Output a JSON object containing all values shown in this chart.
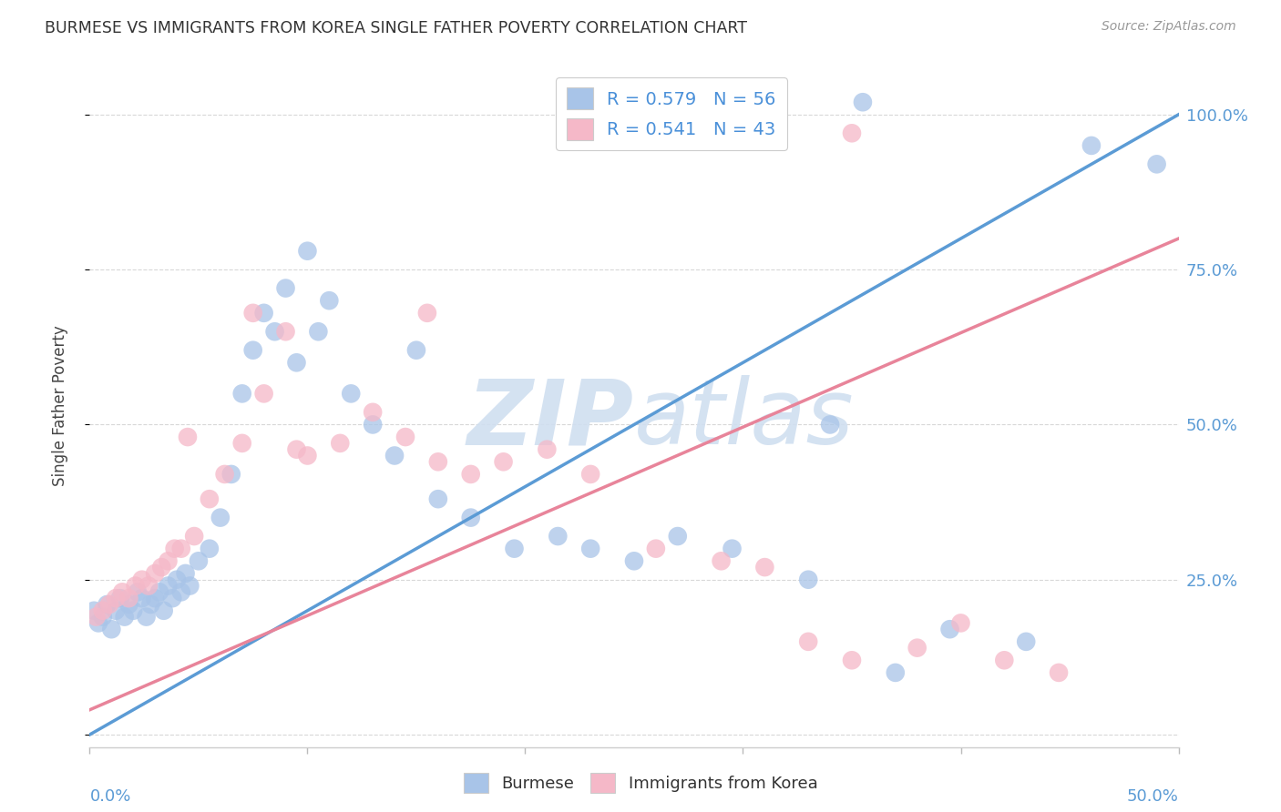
{
  "title": "BURMESE VS IMMIGRANTS FROM KOREA SINGLE FATHER POVERTY CORRELATION CHART",
  "source": "Source: ZipAtlas.com",
  "ylabel": "Single Father Poverty",
  "xlim": [
    0.0,
    0.5
  ],
  "ylim": [
    -0.02,
    1.08
  ],
  "blue_color": "#a8c4e8",
  "pink_color": "#f5b8c8",
  "blue_line_color": "#5b9bd5",
  "pink_line_color": "#e8849a",
  "dash_color": "#c8c8c8",
  "watermark_color": "#d0dff0",
  "blue_slope": 2.0,
  "blue_intercept": 0.0,
  "pink_slope": 1.52,
  "pink_intercept": 0.04,
  "burmese_x": [
    0.002,
    0.004,
    0.006,
    0.008,
    0.01,
    0.012,
    0.014,
    0.016,
    0.018,
    0.02,
    0.022,
    0.024,
    0.026,
    0.028,
    0.03,
    0.032,
    0.034,
    0.036,
    0.038,
    0.04,
    0.042,
    0.044,
    0.046,
    0.05,
    0.055,
    0.06,
    0.065,
    0.07,
    0.075,
    0.08,
    0.085,
    0.09,
    0.095,
    0.1,
    0.105,
    0.11,
    0.12,
    0.13,
    0.14,
    0.15,
    0.16,
    0.175,
    0.195,
    0.215,
    0.23,
    0.25,
    0.27,
    0.295,
    0.33,
    0.37,
    0.395,
    0.43,
    0.46,
    0.49,
    0.34,
    0.355
  ],
  "burmese_y": [
    0.2,
    0.18,
    0.19,
    0.21,
    0.17,
    0.2,
    0.22,
    0.19,
    0.21,
    0.2,
    0.23,
    0.22,
    0.19,
    0.21,
    0.22,
    0.23,
    0.2,
    0.24,
    0.22,
    0.25,
    0.23,
    0.26,
    0.24,
    0.28,
    0.3,
    0.35,
    0.42,
    0.55,
    0.62,
    0.68,
    0.65,
    0.72,
    0.6,
    0.78,
    0.65,
    0.7,
    0.55,
    0.5,
    0.45,
    0.62,
    0.38,
    0.35,
    0.3,
    0.32,
    0.3,
    0.28,
    0.32,
    0.3,
    0.25,
    0.1,
    0.17,
    0.15,
    0.95,
    0.92,
    0.5,
    1.02
  ],
  "korea_x": [
    0.003,
    0.006,
    0.009,
    0.012,
    0.015,
    0.018,
    0.021,
    0.024,
    0.027,
    0.03,
    0.033,
    0.036,
    0.039,
    0.042,
    0.048,
    0.055,
    0.062,
    0.07,
    0.08,
    0.09,
    0.1,
    0.115,
    0.13,
    0.145,
    0.16,
    0.175,
    0.19,
    0.21,
    0.23,
    0.26,
    0.29,
    0.31,
    0.33,
    0.35,
    0.38,
    0.4,
    0.42,
    0.445,
    0.35,
    0.155,
    0.045,
    0.075,
    0.095
  ],
  "korea_y": [
    0.19,
    0.2,
    0.21,
    0.22,
    0.23,
    0.22,
    0.24,
    0.25,
    0.24,
    0.26,
    0.27,
    0.28,
    0.3,
    0.3,
    0.32,
    0.38,
    0.42,
    0.47,
    0.55,
    0.65,
    0.45,
    0.47,
    0.52,
    0.48,
    0.44,
    0.42,
    0.44,
    0.46,
    0.42,
    0.3,
    0.28,
    0.27,
    0.15,
    0.12,
    0.14,
    0.18,
    0.12,
    0.1,
    0.97,
    0.68,
    0.48,
    0.68,
    0.46
  ]
}
